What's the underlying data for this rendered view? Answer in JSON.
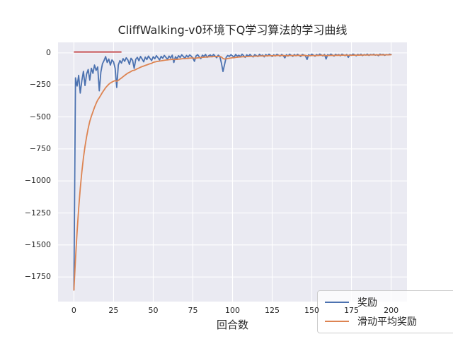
{
  "figure_title": "CliffWalking-v0环境下Q学习算法的学习曲线",
  "colors": {
    "axes_background": "#eaeaf2",
    "grid": "#ffffff",
    "text": "#262626",
    "reward_line": "#4c72b0",
    "moving_average_line": "#dd8452",
    "reference_line": "#c44e52"
  },
  "chart_data": {
    "type": "line",
    "title": "CliffWalking-v0环境下Q学习算法的学习曲线",
    "xlabel": "回合数",
    "ylabel": "",
    "xlim": [
      -10,
      210
    ],
    "ylim": [
      -1942,
      82
    ],
    "grid": true,
    "x_ticks": [
      0,
      25,
      50,
      75,
      100,
      125,
      150,
      175,
      200
    ],
    "x_tick_labels": [
      "0",
      "25",
      "50",
      "75",
      "100",
      "125",
      "150",
      "175",
      "200"
    ],
    "y_ticks": [
      0,
      -250,
      -500,
      -750,
      -1000,
      -1250,
      -1500,
      -1750
    ],
    "y_tick_labels": [
      "0",
      "−250",
      "−500",
      "−750",
      "−1000",
      "−1250",
      "−1500",
      "−1750"
    ],
    "legend": {
      "position": "lower right",
      "entries": [
        {
          "label": "奖励",
          "color": "#4c72b0"
        },
        {
          "label": "滑动平均奖励",
          "color": "#dd8452"
        }
      ]
    },
    "x_start": 0,
    "x_step": 1,
    "series": [
      {
        "name": "奖励",
        "color": "#4c72b0",
        "linewidth": 1.8,
        "values": [
          -1852,
          -195,
          -259,
          -175,
          -314,
          -218,
          -144,
          -255,
          -165,
          -130,
          -213,
          -120,
          -160,
          -95,
          -137,
          -110,
          -296,
          -150,
          -85,
          -60,
          -29,
          -75,
          -48,
          -95,
          -55,
          -70,
          -120,
          -270,
          -95,
          -60,
          -80,
          -45,
          -66,
          -38,
          -55,
          -90,
          -42,
          -58,
          -121,
          -50,
          -35,
          -62,
          -28,
          -48,
          -70,
          -33,
          -52,
          -25,
          -44,
          -60,
          -30,
          -46,
          -22,
          -38,
          -55,
          -27,
          -42,
          -20,
          -35,
          -50,
          -25,
          -40,
          -18,
          -75,
          -30,
          -45,
          -22,
          -36,
          -15,
          -28,
          -42,
          -20,
          -33,
          -16,
          -26,
          -40,
          -66,
          -24,
          -14,
          -30,
          -45,
          -18,
          -28,
          -12,
          -35,
          -22,
          -16,
          -30,
          -12,
          -25,
          -38,
          -18,
          -28,
          -80,
          -145,
          -90,
          -35,
          -20,
          -28,
          -14,
          -24,
          -33,
          -12,
          -26,
          -18,
          -30,
          -10,
          -22,
          -35,
          -15,
          -27,
          -12,
          -24,
          -32,
          -14,
          -21,
          -29,
          -11,
          -23,
          -17,
          -31,
          -13,
          -25,
          -10,
          -20,
          -28,
          -15,
          -24,
          -11,
          -18,
          -26,
          -12,
          -22,
          -39,
          -14,
          -25,
          -10,
          -19,
          -27,
          -13,
          -23,
          -11,
          -20,
          -28,
          -12,
          -17,
          -24,
          -51,
          -15,
          -22,
          -10,
          -18,
          -26,
          -13,
          -21,
          -9,
          -16,
          -24,
          -12,
          -48,
          -14,
          -20,
          -9,
          -17,
          -25,
          -11,
          -19,
          -13,
          -23,
          -10,
          -16,
          -22,
          -12,
          -35,
          -14,
          -19,
          -9,
          -15,
          -23,
          -11,
          -18,
          -10,
          -21,
          -13,
          -17,
          -9,
          -20,
          -12,
          -16,
          -10,
          -18,
          -14,
          -22,
          -9,
          -15,
          -11,
          -19,
          -13,
          -16,
          -10,
          -13
        ]
      },
      {
        "name": "滑动平均奖励",
        "color": "#dd8452",
        "linewidth": 1.8,
        "values": [
          -1852,
          -1610,
          -1400,
          -1215,
          -1060,
          -930,
          -820,
          -730,
          -655,
          -590,
          -535,
          -495,
          -460,
          -425,
          -395,
          -368,
          -350,
          -330,
          -308,
          -290,
          -272,
          -258,
          -245,
          -235,
          -228,
          -222,
          -216,
          -222,
          -215,
          -205,
          -196,
          -186,
          -176,
          -167,
          -158,
          -152,
          -145,
          -138,
          -136,
          -130,
          -124,
          -118,
          -112,
          -107,
          -103,
          -98,
          -94,
          -89,
          -85,
          -82,
          -74,
          -71,
          -68,
          -66,
          -64,
          -62,
          -60,
          -58,
          -56,
          -55,
          -53,
          -52,
          -50,
          -52,
          -51,
          -51,
          -49,
          -48,
          -46,
          -45,
          -45,
          -43,
          -43,
          -41,
          -40,
          -40,
          -43,
          -41,
          -39,
          -38,
          -36,
          -35,
          -34,
          -33,
          -32,
          -31,
          -30,
          -30,
          -29,
          -29,
          -28,
          -28,
          -28,
          -33,
          -44,
          -48,
          -47,
          -44,
          -42,
          -40,
          -38,
          -37.6,
          -35,
          -34.1,
          -32.5,
          -32.3,
          -30.1,
          -29.3,
          -29.9,
          -28.4,
          -28.3,
          -26.7,
          -26.4,
          -27,
          -25.7,
          -25.2,
          -25.6,
          -24.1,
          -24,
          -23.3,
          -24.1,
          -23,
          -23.2,
          -21.9,
          -21.7,
          -22.3,
          -21.6,
          -21.8,
          -20.7,
          -20.4,
          -21,
          -20.1,
          -20.3,
          -22.2,
          -21.4,
          -21.8,
          -20.6,
          -20.4,
          -21.1,
          -20.3,
          -20.6,
          -19.6,
          -19.6,
          -20.4,
          -19.6,
          -19.3,
          -19.8,
          -22.9,
          -22.1,
          -22.1,
          -20.9,
          -20.6,
          -21.1,
          -20.3,
          -20.4,
          -19.3,
          -19,
          -19.5,
          -18.8,
          -21.7,
          -20.9,
          -20.8,
          -19.6,
          -19.3,
          -19.9,
          -19,
          -19,
          -18.4,
          -18.9,
          -18,
          -17.8,
          -18.2,
          -17.6,
          -19.3,
          -18.8,
          -18.8,
          -17.8,
          -17.5,
          -18.1,
          -17.4,
          -17.5,
          -16.8,
          -17.2,
          -16.8,
          -16.8,
          -16,
          -16.4,
          -16,
          -16,
          -15.4,
          -15.7,
          -15.5,
          -16.2,
          -15.5,
          -15.5,
          -15.1,
          -15.5,
          -15.3,
          -15.4,
          -14.8,
          -14.6
        ]
      }
    ],
    "reference_line": {
      "x": [
        0,
        30
      ],
      "y": 0,
      "color": "#c44e52",
      "linewidth": 2
    }
  }
}
